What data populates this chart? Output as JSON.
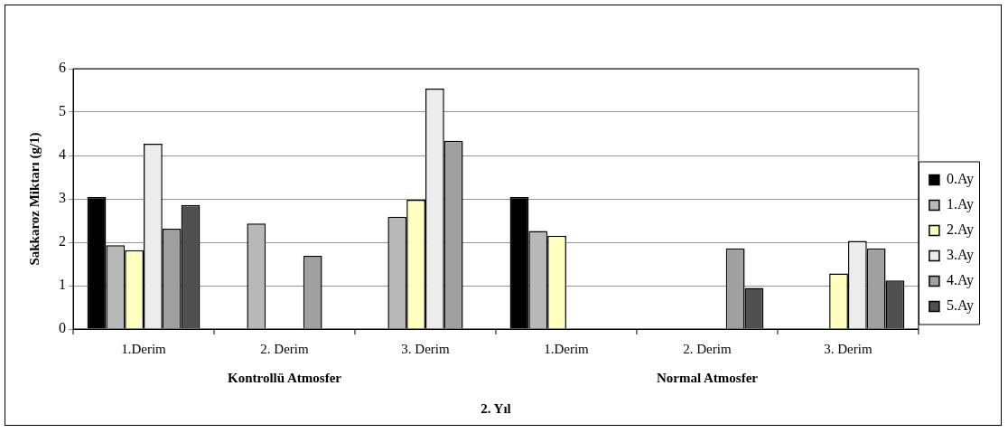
{
  "chart_data": {
    "type": "bar",
    "categories": [
      "1.Derim",
      "2. Derim",
      "3. Derim",
      "1.Derim",
      "2. Derim",
      "3. Derim"
    ],
    "series": [
      {
        "name": "0.Ay",
        "color": "#000000",
        "values": [
          3.04,
          null,
          null,
          3.04,
          null,
          null
        ]
      },
      {
        "name": "1.Ay",
        "color": "#b8b8b8",
        "values": [
          1.93,
          2.43,
          2.59,
          2.26,
          null,
          null
        ]
      },
      {
        "name": "2.Ay",
        "color": "#ffffc0",
        "values": [
          1.82,
          null,
          2.98,
          2.15,
          null,
          1.28
        ]
      },
      {
        "name": "3.Ay",
        "color": "#ececec",
        "values": [
          4.27,
          null,
          5.54,
          null,
          null,
          2.03
        ]
      },
      {
        "name": "4.Ay",
        "color": "#a0a0a0",
        "values": [
          2.31,
          1.69,
          4.34,
          null,
          1.86,
          1.86
        ]
      },
      {
        "name": "5.Ay",
        "color": "#505050",
        "values": [
          2.86,
          null,
          null,
          null,
          0.95,
          1.12
        ]
      }
    ],
    "ylabel": "Sakkaroz Miktarı (g/1)",
    "xlabel": "2. Yıl",
    "annotations": [
      "Kontrollü Atmosfer",
      "Normal Atmosfer"
    ],
    "ylim": [
      0,
      6
    ],
    "yticks": [
      0,
      1,
      2,
      3,
      4,
      5,
      6
    ],
    "grid": "y",
    "legend": "right"
  }
}
